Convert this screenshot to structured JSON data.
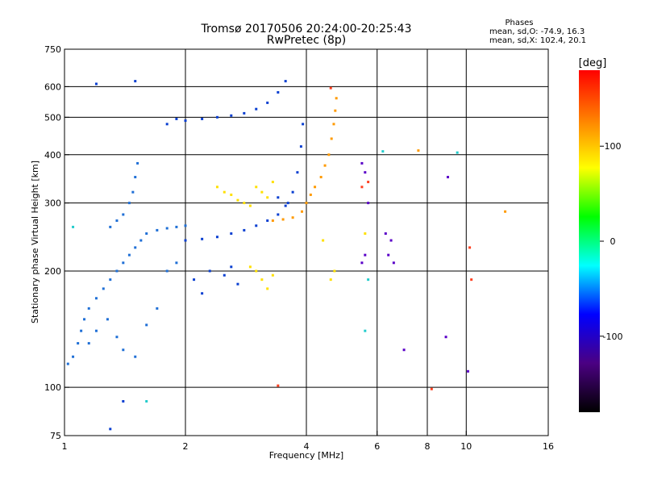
{
  "chart_data": {
    "type": "scatter",
    "title": "Tromsø 20170506 20:24:00-20:25:43",
    "subtitle": "RwPretec (8p)",
    "info": {
      "heading": "Phases",
      "line_o": "mean, sd,O: -74.9, 16.3",
      "line_x": "mean, sd,X: 102.4, 20.1"
    },
    "xlabel": "Frequency [MHz]",
    "ylabel": "Stationary phase Virtual Height [km]",
    "xscale": "log",
    "yscale": "log",
    "xlim": [
      1,
      16
    ],
    "ylim": [
      75,
      750
    ],
    "x_ticks": [
      1,
      2,
      4,
      6,
      8,
      10,
      16
    ],
    "x_tick_labels": [
      "1",
      "2",
      "4",
      "6",
      "8",
      "10",
      "16"
    ],
    "x_gridlines": [
      2,
      4,
      6,
      8,
      10
    ],
    "y_ticks": [
      75,
      100,
      200,
      300,
      400,
      500,
      600,
      750
    ],
    "y_tick_labels": [
      "75",
      "100",
      "200",
      "300",
      "400",
      "500",
      "600",
      "750"
    ],
    "y_gridlines": [
      100,
      200,
      300,
      400,
      500,
      600
    ],
    "grid": true,
    "colorbar": {
      "label": "[deg]",
      "range": [
        -180,
        180
      ],
      "ticks": [
        100,
        0,
        -100
      ],
      "tick_labels": [
        "100",
        "0",
        "-100"
      ],
      "colors": [
        "#ff0000",
        "#ff7f00",
        "#ffff00",
        "#00ff00",
        "#00ffff",
        "#0000ff",
        "#4b0082",
        "#000000"
      ]
    },
    "series": [
      {
        "color": "#1f6fd6",
        "points": [
          {
            "x": 1.02,
            "y": 115
          },
          {
            "x": 1.05,
            "y": 120
          },
          {
            "x": 1.08,
            "y": 130
          },
          {
            "x": 1.1,
            "y": 140
          },
          {
            "x": 1.12,
            "y": 150
          },
          {
            "x": 1.15,
            "y": 160
          },
          {
            "x": 1.2,
            "y": 170
          },
          {
            "x": 1.25,
            "y": 180
          },
          {
            "x": 1.3,
            "y": 190
          },
          {
            "x": 1.35,
            "y": 200
          },
          {
            "x": 1.4,
            "y": 210
          },
          {
            "x": 1.45,
            "y": 220
          },
          {
            "x": 1.5,
            "y": 230
          },
          {
            "x": 1.55,
            "y": 240
          },
          {
            "x": 1.6,
            "y": 250
          },
          {
            "x": 1.7,
            "y": 255
          },
          {
            "x": 1.8,
            "y": 258
          },
          {
            "x": 1.9,
            "y": 260
          },
          {
            "x": 2.0,
            "y": 262
          },
          {
            "x": 1.3,
            "y": 260
          },
          {
            "x": 1.35,
            "y": 270
          },
          {
            "x": 1.4,
            "y": 280
          },
          {
            "x": 1.45,
            "y": 300
          },
          {
            "x": 1.48,
            "y": 320
          },
          {
            "x": 1.5,
            "y": 350
          },
          {
            "x": 1.52,
            "y": 380
          },
          {
            "x": 1.15,
            "y": 130
          },
          {
            "x": 1.2,
            "y": 140
          },
          {
            "x": 1.28,
            "y": 150
          },
          {
            "x": 1.35,
            "y": 135
          },
          {
            "x": 1.4,
            "y": 125
          },
          {
            "x": 1.5,
            "y": 120
          },
          {
            "x": 1.6,
            "y": 145
          },
          {
            "x": 1.7,
            "y": 160
          },
          {
            "x": 1.8,
            "y": 200
          },
          {
            "x": 1.9,
            "y": 210
          }
        ]
      },
      {
        "color": "#0a3fd1",
        "points": [
          {
            "x": 2.0,
            "y": 240
          },
          {
            "x": 2.2,
            "y": 242
          },
          {
            "x": 2.4,
            "y": 245
          },
          {
            "x": 2.6,
            "y": 250
          },
          {
            "x": 2.8,
            "y": 255
          },
          {
            "x": 3.0,
            "y": 262
          },
          {
            "x": 3.2,
            "y": 270
          },
          {
            "x": 3.4,
            "y": 280
          },
          {
            "x": 3.55,
            "y": 295
          },
          {
            "x": 3.7,
            "y": 320
          },
          {
            "x": 3.8,
            "y": 360
          },
          {
            "x": 3.88,
            "y": 420
          },
          {
            "x": 3.92,
            "y": 480
          },
          {
            "x": 2.0,
            "y": 490
          },
          {
            "x": 2.2,
            "y": 495
          },
          {
            "x": 2.4,
            "y": 500
          },
          {
            "x": 2.6,
            "y": 505
          },
          {
            "x": 2.8,
            "y": 512
          },
          {
            "x": 3.0,
            "y": 525
          },
          {
            "x": 3.2,
            "y": 545
          },
          {
            "x": 3.4,
            "y": 580
          },
          {
            "x": 3.55,
            "y": 620
          },
          {
            "x": 1.8,
            "y": 480
          },
          {
            "x": 1.9,
            "y": 495
          },
          {
            "x": 2.1,
            "y": 190
          },
          {
            "x": 2.3,
            "y": 200
          },
          {
            "x": 2.5,
            "y": 195
          },
          {
            "x": 2.7,
            "y": 185
          },
          {
            "x": 2.2,
            "y": 175
          },
          {
            "x": 2.6,
            "y": 205
          },
          {
            "x": 3.4,
            "y": 310
          },
          {
            "x": 3.6,
            "y": 300
          },
          {
            "x": 1.5,
            "y": 620
          },
          {
            "x": 1.2,
            "y": 610
          },
          {
            "x": 1.4,
            "y": 92
          },
          {
            "x": 1.3,
            "y": 78
          }
        ]
      },
      {
        "color": "#ffe000",
        "points": [
          {
            "x": 2.4,
            "y": 330
          },
          {
            "x": 2.5,
            "y": 320
          },
          {
            "x": 2.6,
            "y": 315
          },
          {
            "x": 2.7,
            "y": 305
          },
          {
            "x": 2.8,
            "y": 300
          },
          {
            "x": 2.9,
            "y": 295
          },
          {
            "x": 3.0,
            "y": 330
          },
          {
            "x": 3.1,
            "y": 320
          },
          {
            "x": 3.2,
            "y": 310
          },
          {
            "x": 3.3,
            "y": 340
          },
          {
            "x": 3.0,
            "y": 200
          },
          {
            "x": 3.1,
            "y": 190
          },
          {
            "x": 3.2,
            "y": 180
          },
          {
            "x": 3.3,
            "y": 195
          },
          {
            "x": 2.9,
            "y": 205
          },
          {
            "x": 4.6,
            "y": 190
          },
          {
            "x": 4.7,
            "y": 200
          },
          {
            "x": 5.6,
            "y": 250
          },
          {
            "x": 4.4,
            "y": 240
          }
        ]
      },
      {
        "color": "#ff9a00",
        "points": [
          {
            "x": 3.3,
            "y": 270
          },
          {
            "x": 3.5,
            "y": 272
          },
          {
            "x": 3.7,
            "y": 275
          },
          {
            "x": 3.9,
            "y": 285
          },
          {
            "x": 4.0,
            "y": 300
          },
          {
            "x": 4.1,
            "y": 315
          },
          {
            "x": 4.2,
            "y": 330
          },
          {
            "x": 4.35,
            "y": 350
          },
          {
            "x": 4.45,
            "y": 375
          },
          {
            "x": 4.55,
            "y": 400
          },
          {
            "x": 4.62,
            "y": 440
          },
          {
            "x": 4.68,
            "y": 480
          },
          {
            "x": 4.72,
            "y": 520
          },
          {
            "x": 4.75,
            "y": 560
          },
          {
            "x": 7.6,
            "y": 410
          },
          {
            "x": 12.5,
            "y": 285
          }
        ]
      },
      {
        "color": "#ff4020",
        "points": [
          {
            "x": 4.6,
            "y": 595
          },
          {
            "x": 5.5,
            "y": 330
          },
          {
            "x": 5.7,
            "y": 340
          },
          {
            "x": 8.2,
            "y": 99
          },
          {
            "x": 10.2,
            "y": 230
          },
          {
            "x": 10.3,
            "y": 190
          },
          {
            "x": 3.4,
            "y": 101
          }
        ]
      },
      {
        "color": "#5a00c8",
        "points": [
          {
            "x": 6.3,
            "y": 250
          },
          {
            "x": 6.5,
            "y": 240
          },
          {
            "x": 6.6,
            "y": 210
          },
          {
            "x": 6.4,
            "y": 220
          },
          {
            "x": 5.5,
            "y": 210
          },
          {
            "x": 5.6,
            "y": 220
          },
          {
            "x": 5.5,
            "y": 380
          },
          {
            "x": 5.6,
            "y": 360
          },
          {
            "x": 5.7,
            "y": 300
          },
          {
            "x": 7.0,
            "y": 125
          },
          {
            "x": 8.9,
            "y": 135
          },
          {
            "x": 9.0,
            "y": 350
          },
          {
            "x": 10.1,
            "y": 110
          }
        ]
      },
      {
        "color": "#22cccc",
        "points": [
          {
            "x": 5.6,
            "y": 140
          },
          {
            "x": 5.7,
            "y": 190
          },
          {
            "x": 6.2,
            "y": 408
          },
          {
            "x": 9.5,
            "y": 405
          },
          {
            "x": 1.6,
            "y": 92
          },
          {
            "x": 1.05,
            "y": 260
          }
        ]
      }
    ]
  }
}
